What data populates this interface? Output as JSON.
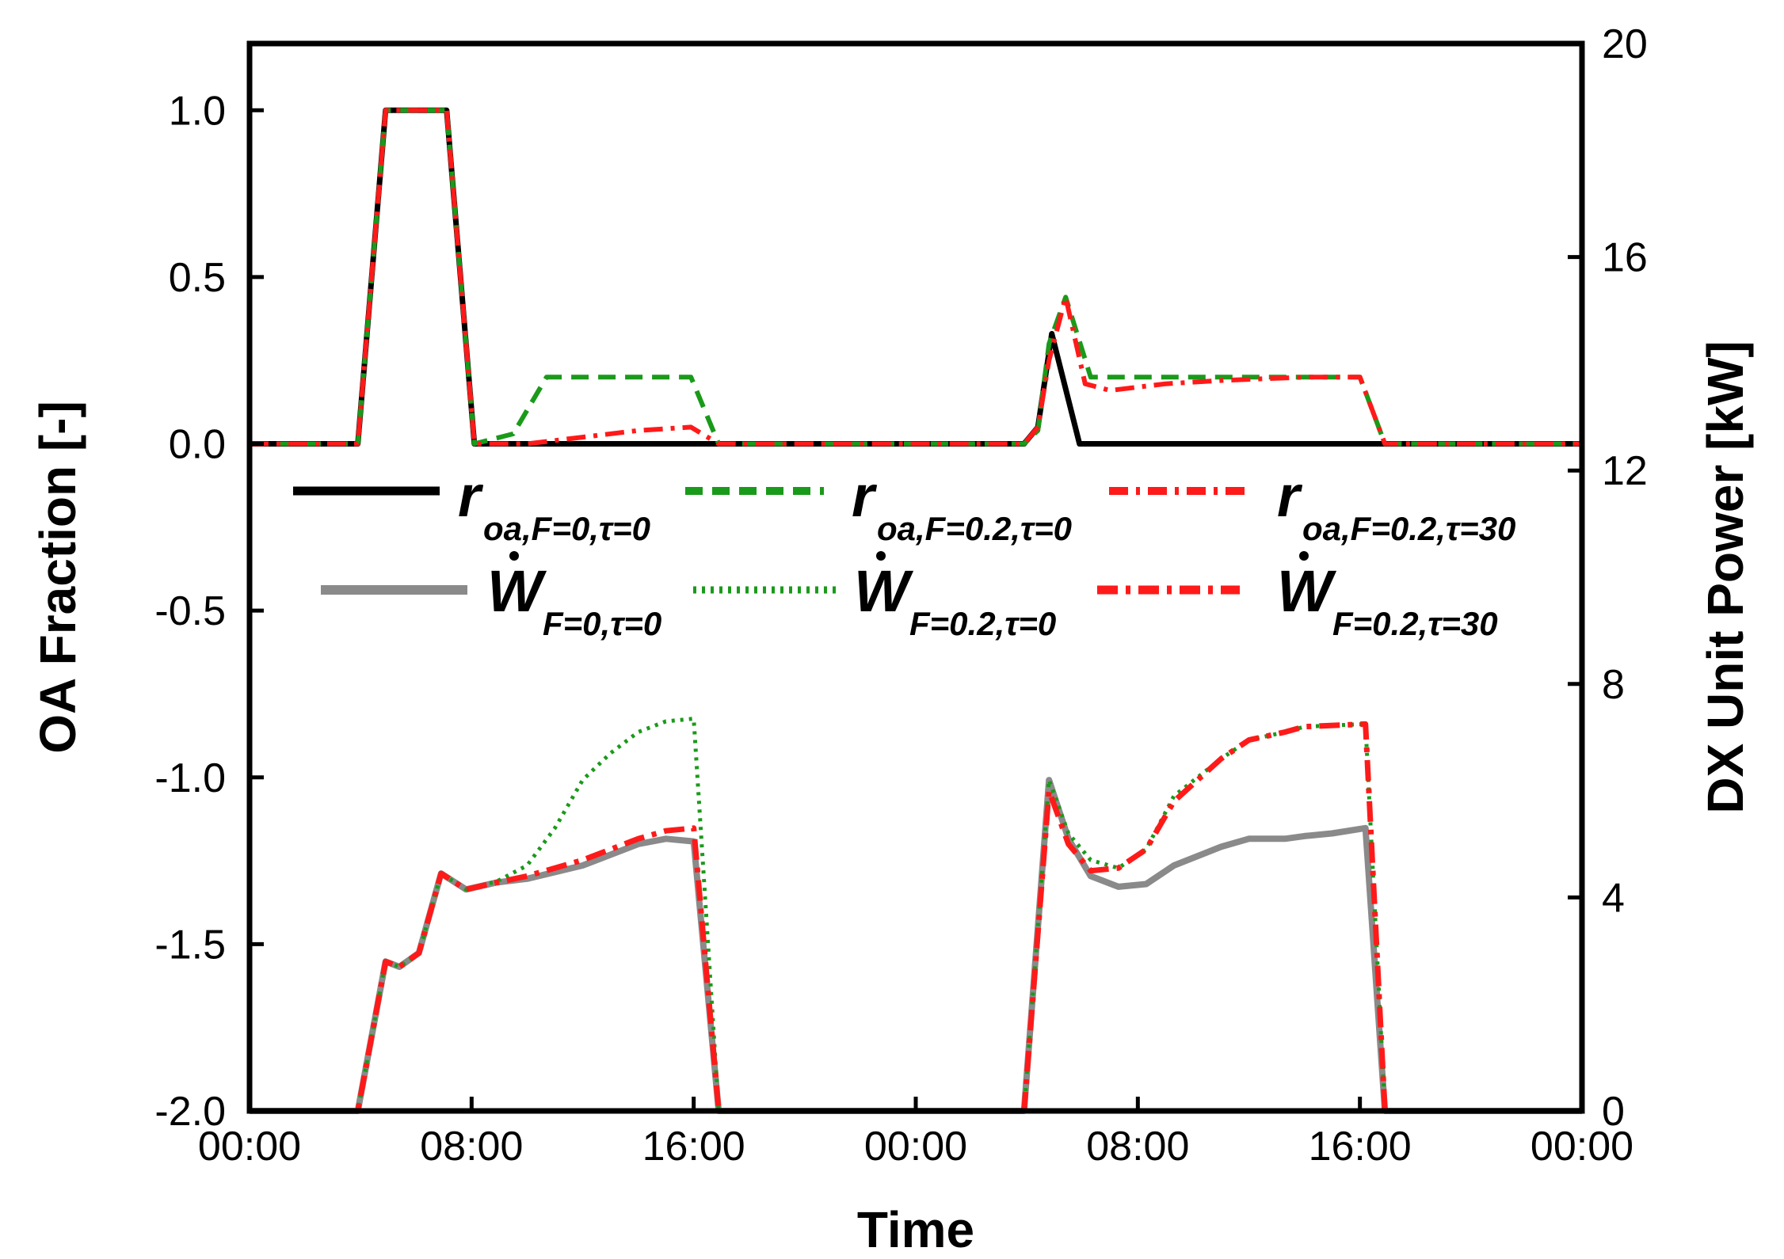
{
  "chart_data": {
    "type": "line",
    "xlabel": "Time",
    "ylabel_left": "OA Fraction [-]",
    "ylabel_right": "DX Unit Power [kW]",
    "xlim": [
      0,
      48
    ],
    "ylim_left": [
      -2.0,
      1.2
    ],
    "ylim_right": [
      0,
      20
    ],
    "x_ticks": [
      0,
      8,
      16,
      24,
      32,
      40,
      48
    ],
    "x_tick_labels": [
      "00:00",
      "08:00",
      "16:00",
      "00:00",
      "08:00",
      "16:00",
      "00:00"
    ],
    "y_left_ticks": [
      -2.0,
      -1.5,
      -1.0,
      -0.5,
      0.0,
      0.5,
      1.0
    ],
    "y_left_tick_labels": [
      "-2.0",
      "-1.5",
      "-1.0",
      "-0.5",
      "0.0",
      "0.5",
      "1.0"
    ],
    "y_right_ticks": [
      0,
      4,
      8,
      12,
      16,
      20
    ],
    "y_right_tick_labels": [
      "0",
      "4",
      "8",
      "12",
      "16",
      "20"
    ],
    "grid": false,
    "legend": [
      {
        "series": "r_F0_t0",
        "symbol": "r",
        "subscript": "oa,F=0,τ=0"
      },
      {
        "series": "r_F02_t0",
        "symbol": "r",
        "subscript": "oa,F=0.2,τ=0"
      },
      {
        "series": "r_F02_t30",
        "symbol": "r",
        "subscript": "oa,F=0.2,τ=30"
      },
      {
        "series": "w_F0_t0",
        "symbol": "W",
        "subscript": "F=0,τ=0"
      },
      {
        "series": "w_F02_t0",
        "symbol": "W",
        "subscript": "F=0.2,τ=0"
      },
      {
        "series": "w_F02_t30",
        "symbol": "W",
        "subscript": "F=0.2,τ=30"
      }
    ],
    "series": [
      {
        "id": "r_F0_t0",
        "axis": "left",
        "color": "#000000",
        "style": "solid",
        "x": [
          0,
          3.9,
          4.9,
          5.9,
          7.1,
          8.1,
          16.1,
          16.9,
          27.9,
          28.4,
          28.9,
          29.9,
          48
        ],
        "y": [
          0,
          0,
          1,
          1,
          1,
          0,
          0,
          0,
          0,
          0.05,
          0.33,
          0,
          0
        ]
      },
      {
        "id": "r_F02_t0",
        "axis": "left",
        "color": "#1a9a1a",
        "style": "dashed",
        "x": [
          0,
          3.9,
          4.9,
          5.9,
          7.1,
          8.1,
          9.5,
          10.7,
          15.9,
          16.9,
          27.9,
          28.4,
          28.8,
          29.4,
          30.3,
          32,
          35,
          38,
          40,
          40.9,
          48
        ],
        "y": [
          0,
          0,
          1,
          1,
          1,
          0,
          0.03,
          0.2,
          0.2,
          0,
          0,
          0.04,
          0.3,
          0.44,
          0.2,
          0.2,
          0.2,
          0.2,
          0.2,
          0,
          0
        ]
      },
      {
        "id": "r_F02_t30",
        "axis": "left",
        "color": "#ff1a1a",
        "style": "dashdot",
        "x": [
          0,
          3.9,
          4.9,
          5.9,
          7.1,
          8.1,
          10,
          12,
          14,
          15.9,
          16.9,
          27.9,
          28.4,
          28.8,
          29.4,
          30.1,
          31,
          32,
          33,
          35,
          38,
          40,
          40.9,
          48
        ],
        "y": [
          0,
          0,
          1,
          1,
          1,
          0,
          0,
          0.02,
          0.04,
          0.05,
          0,
          0,
          0.05,
          0.25,
          0.44,
          0.18,
          0.16,
          0.17,
          0.18,
          0.19,
          0.2,
          0.2,
          0,
          0
        ]
      },
      {
        "id": "w_F0_t0",
        "axis": "right",
        "color": "#8a8a8a",
        "style": "solid-thick",
        "x": [
          0,
          3.9,
          4.9,
          5.4,
          6.1,
          6.9,
          7.8,
          8.9,
          10,
          12,
          14,
          15,
          16,
          16.9,
          27.9,
          28.8,
          29.5,
          30.3,
          31.3,
          32.3,
          33.3,
          35,
          36,
          37.3,
          38,
          39,
          40.2,
          40.9,
          48
        ],
        "y": [
          0,
          0,
          2.8,
          2.7,
          2.96,
          4.45,
          4.15,
          4.28,
          4.35,
          4.6,
          5.0,
          5.1,
          5.05,
          0,
          0,
          6.2,
          5.1,
          4.4,
          4.2,
          4.25,
          4.6,
          4.95,
          5.1,
          5.1,
          5.15,
          5.2,
          5.3,
          0,
          0
        ]
      },
      {
        "id": "w_F02_t0",
        "axis": "right",
        "color": "#1a9a1a",
        "style": "dotted",
        "x": [
          0,
          3.9,
          4.9,
          5.4,
          6.1,
          6.9,
          7.8,
          8.9,
          10,
          11,
          12,
          13,
          14,
          15,
          16,
          16.9,
          27.9,
          28.8,
          29.5,
          30.3,
          31.3,
          32.3,
          33.3,
          35,
          36,
          37.3,
          38,
          40.2,
          40.9,
          48
        ],
        "y": [
          0,
          0,
          2.8,
          2.7,
          2.96,
          4.45,
          4.15,
          4.3,
          4.6,
          5.3,
          6.2,
          6.7,
          7.1,
          7.3,
          7.35,
          0,
          0,
          6.2,
          5.2,
          4.7,
          4.55,
          4.9,
          5.9,
          6.6,
          6.95,
          7.1,
          7.2,
          7.25,
          0,
          0
        ]
      },
      {
        "id": "w_F02_t30",
        "axis": "right",
        "color": "#ff1a1a",
        "style": "dashdot-thick",
        "x": [
          0,
          3.9,
          4.9,
          5.4,
          6.1,
          6.9,
          7.8,
          8.9,
          10,
          12,
          14,
          15,
          16,
          16.9,
          27.9,
          28.8,
          29.5,
          30.3,
          31.3,
          32.3,
          33.3,
          35,
          36,
          37.3,
          38,
          40.2,
          40.9,
          48
        ],
        "y": [
          0,
          0,
          2.8,
          2.7,
          2.96,
          4.45,
          4.15,
          4.28,
          4.4,
          4.7,
          5.1,
          5.25,
          5.3,
          0,
          0,
          6.0,
          5.0,
          4.5,
          4.55,
          4.9,
          5.8,
          6.6,
          6.95,
          7.1,
          7.2,
          7.25,
          0,
          0
        ]
      }
    ]
  }
}
